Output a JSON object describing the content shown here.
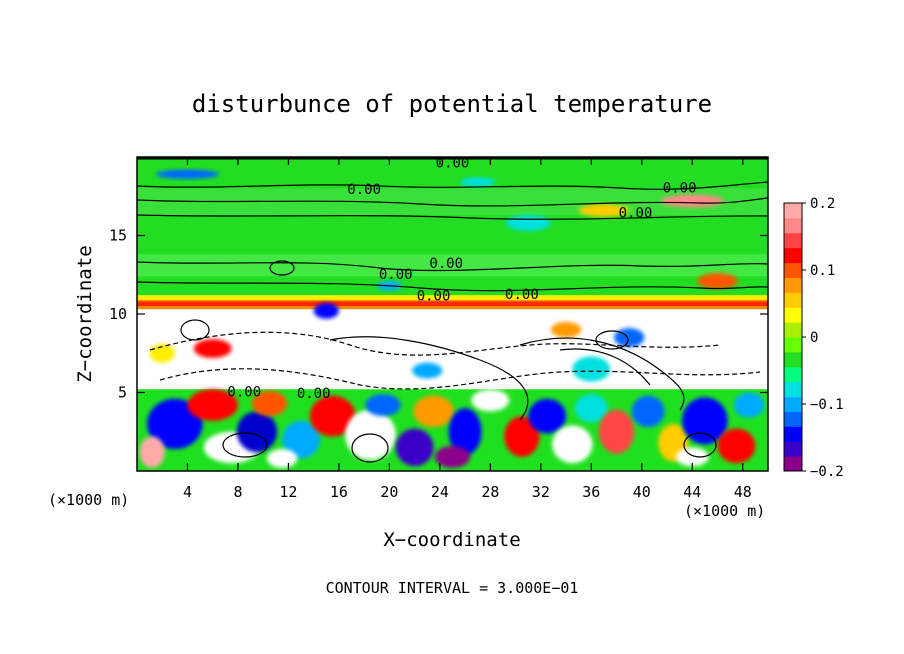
{
  "chart_data": {
    "type": "heatmap",
    "title": "disturbunce of potential temperature",
    "xlabel": "X−coordinate",
    "ylabel": "Z−coordinate",
    "x_unit_left": "(×1000 m)",
    "x_unit_right": "(×1000 m)",
    "xlim": [
      0,
      50
    ],
    "ylim": [
      0,
      20
    ],
    "x_ticks": [
      {
        "v": 4,
        "label": "4"
      },
      {
        "v": 8,
        "label": "8"
      },
      {
        "v": 12,
        "label": "12"
      },
      {
        "v": 16,
        "label": "16"
      },
      {
        "v": 20,
        "label": "20"
      },
      {
        "v": 24,
        "label": "24"
      },
      {
        "v": 28,
        "label": "28"
      },
      {
        "v": 32,
        "label": "32"
      },
      {
        "v": 36,
        "label": "36"
      },
      {
        "v": 40,
        "label": "40"
      },
      {
        "v": 44,
        "label": "44"
      },
      {
        "v": 48,
        "label": "48"
      }
    ],
    "y_ticks": [
      {
        "v": 5,
        "label": "5"
      },
      {
        "v": 10,
        "label": "10"
      },
      {
        "v": 15,
        "label": "15"
      }
    ],
    "colorbar": {
      "range": [
        -0.2,
        0.2
      ],
      "ticks": [
        {
          "v": 0.2,
          "label": "0.2"
        },
        {
          "v": 0.1,
          "label": "0.1"
        },
        {
          "v": 0,
          "label": "0"
        },
        {
          "v": -0.1,
          "label": "−0.1"
        },
        {
          "v": -0.2,
          "label": "−0.2"
        }
      ],
      "colors": [
        "#8b008b",
        "#3a00c8",
        "#0000ff",
        "#0066ff",
        "#00aaff",
        "#00e0e0",
        "#00ff80",
        "#22dd22",
        "#66ff00",
        "#aaee00",
        "#ffff00",
        "#ffcc00",
        "#ff9900",
        "#ff5500",
        "#ff0000",
        "#ff4444",
        "#ff8888",
        "#ffaaaa"
      ]
    },
    "contour_labels": [
      {
        "x": 25,
        "y": 19.6,
        "text": "0.00"
      },
      {
        "x": 18,
        "y": 17.9,
        "text": "0.00"
      },
      {
        "x": 43,
        "y": 18.0,
        "text": "0.00"
      },
      {
        "x": 39.5,
        "y": 16.4,
        "text": "0.00"
      },
      {
        "x": 24.5,
        "y": 13.2,
        "text": "0.00"
      },
      {
        "x": 20.5,
        "y": 12.5,
        "text": "0.00"
      },
      {
        "x": 23.5,
        "y": 11.1,
        "text": "0.00"
      },
      {
        "x": 30.5,
        "y": 11.2,
        "text": "0.00"
      },
      {
        "x": 8.5,
        "y": 5.0,
        "text": "0.00"
      },
      {
        "x": 14,
        "y": 4.9,
        "text": "0.00"
      }
    ],
    "footnote": "CONTOUR INTERVAL = 3.000E−01"
  }
}
